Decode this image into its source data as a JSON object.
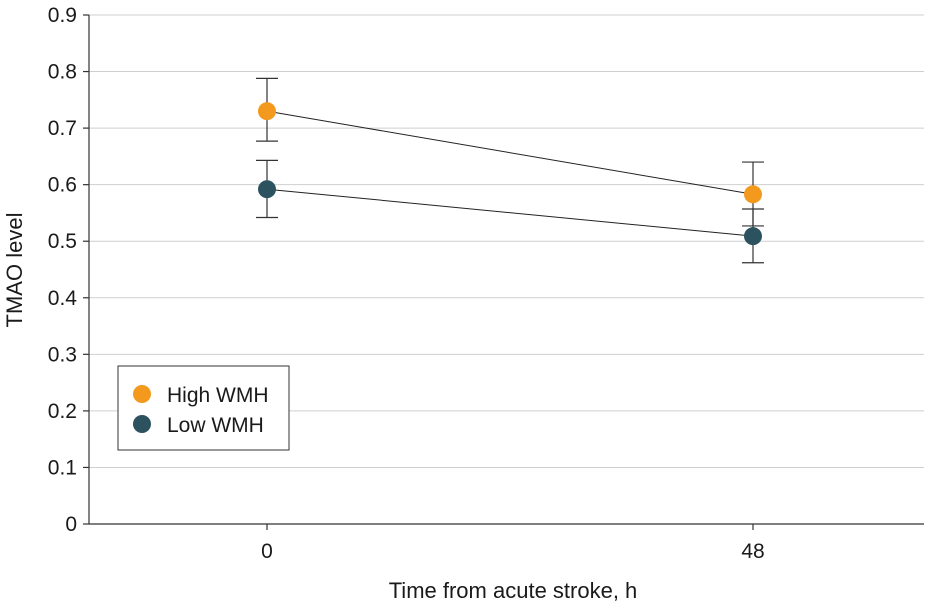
{
  "chart_data": {
    "type": "line",
    "title": "",
    "xlabel": "Time from acute stroke, h",
    "ylabel": "TMAO level",
    "categories": [
      "0",
      "48"
    ],
    "ylim": [
      0,
      0.9
    ],
    "yticks": [
      "0",
      "0.1",
      "0.2",
      "0.3",
      "0.4",
      "0.5",
      "0.6",
      "0.7",
      "0.8",
      "0.9"
    ],
    "grid": true,
    "legend_position": "bottom-left",
    "series": [
      {
        "name": "High WMH",
        "color": "#f39a1e",
        "values": [
          0.73,
          0.583
        ],
        "error_low": [
          0.677,
          0.527
        ],
        "error_high": [
          0.788,
          0.64
        ]
      },
      {
        "name": "Low WMH",
        "color": "#2b525e",
        "values": [
          0.592,
          0.509
        ],
        "error_low": [
          0.542,
          0.462
        ],
        "error_high": [
          0.643,
          0.557
        ]
      }
    ]
  }
}
